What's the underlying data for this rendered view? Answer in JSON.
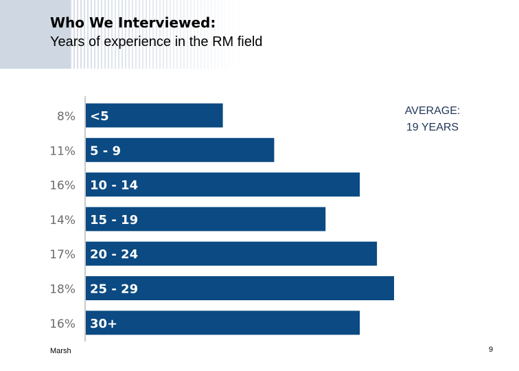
{
  "header": {
    "title": "Who We Interviewed:",
    "subtitle": "Years of experience in the RM field"
  },
  "annotation": {
    "line1": "AVERAGE:",
    "line2": "19 YEARS"
  },
  "footer": {
    "source": "Marsh",
    "page_number": "9"
  },
  "colors": {
    "bar": "#0b4a82",
    "bar_label": "#ffffff",
    "value_label": "#6b6b6b",
    "axis": "#c8c8c8",
    "annotation_text": "#1f3556"
  },
  "chart_data": {
    "type": "bar",
    "orientation": "horizontal",
    "categories": [
      "<5",
      "5 - 9",
      "10 - 14",
      "15 - 19",
      "20 - 24",
      "25 - 29",
      "30+"
    ],
    "values": [
      8,
      11,
      16,
      14,
      17,
      18,
      16
    ],
    "value_labels": [
      "8%",
      "11%",
      "16%",
      "14%",
      "17%",
      "18%",
      "16%"
    ],
    "unit": "%",
    "xlim": [
      0,
      18
    ],
    "grid": false,
    "legend": "none"
  }
}
